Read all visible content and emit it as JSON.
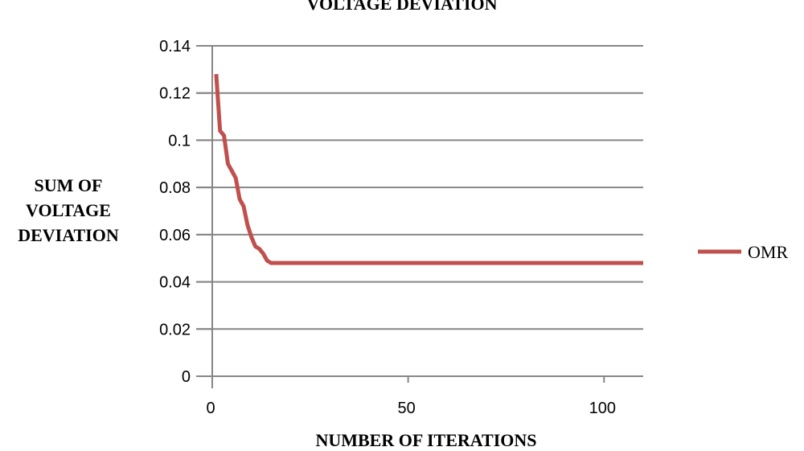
{
  "chart_data": {
    "type": "line",
    "title": "VOLTAGE DEVIATION",
    "xlabel": "NUMBER OF ITERATIONS",
    "ylabel": "SUM OF VOLTAGE DEVIATION",
    "ylabel_lines": [
      "SUM OF",
      "VOLTAGE",
      "DEVIATION"
    ],
    "xlim": [
      0,
      110
    ],
    "ylim": [
      0,
      0.14
    ],
    "x_ticks": [
      0,
      50,
      100
    ],
    "x_tick_labels": [
      "0",
      "50",
      "100"
    ],
    "y_ticks": [
      0,
      0.02,
      0.04,
      0.06,
      0.08,
      0.1,
      0.12,
      0.14
    ],
    "y_tick_labels": [
      "0",
      "0.02",
      "0.04",
      "0.06",
      "0.08",
      "0.1",
      "0.12",
      "0.14"
    ],
    "grid": "horizontal",
    "legend": "right",
    "series": [
      {
        "name": "OMR",
        "color": "#C0504D",
        "x": [
          1,
          2,
          3,
          4,
          5,
          6,
          7,
          8,
          9,
          10,
          11,
          12,
          13,
          14,
          15,
          20,
          30,
          40,
          50,
          60,
          70,
          80,
          90,
          100,
          110
        ],
        "y": [
          0.128,
          0.104,
          0.102,
          0.09,
          0.087,
          0.084,
          0.075,
          0.072,
          0.064,
          0.059,
          0.055,
          0.054,
          0.052,
          0.049,
          0.048,
          0.048,
          0.048,
          0.048,
          0.048,
          0.048,
          0.048,
          0.048,
          0.048,
          0.048,
          0.048
        ]
      }
    ]
  }
}
